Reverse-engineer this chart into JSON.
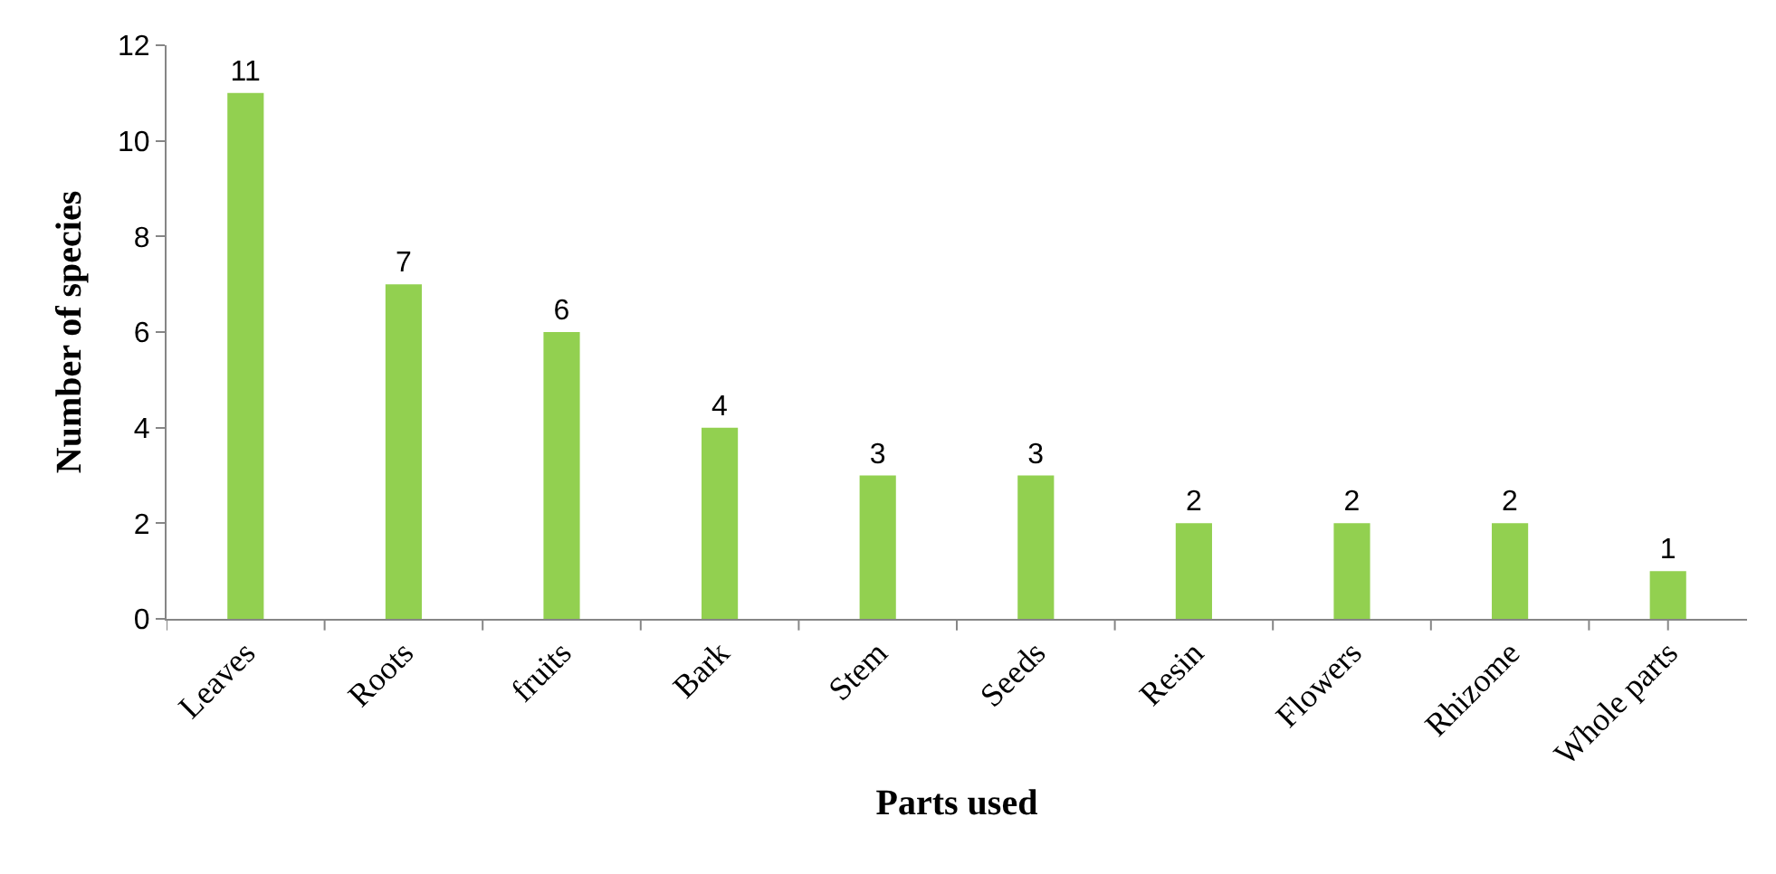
{
  "chart_data": {
    "type": "bar",
    "xlabel": "Parts used",
    "ylabel": "Number of species",
    "categories": [
      "Leaves",
      "Roots",
      "fruits",
      "Bark",
      "Stem",
      "Seeds",
      "Resin",
      "Flowers",
      "Rhizome",
      "Whole parts"
    ],
    "values": [
      11,
      7,
      6,
      4,
      3,
      3,
      2,
      2,
      2,
      1
    ],
    "color": "#92d050",
    "ylim": [
      0,
      12
    ],
    "yticks": [
      0,
      2,
      4,
      6,
      8,
      10,
      12
    ],
    "grid": false,
    "legend": false,
    "data_labels": true
  }
}
